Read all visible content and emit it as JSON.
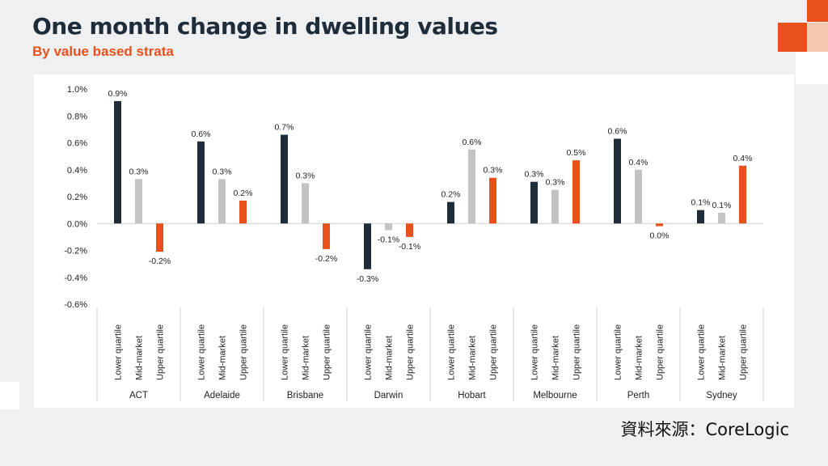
{
  "header": {
    "title": "One month change in dwelling values",
    "subtitle": "By value based strata"
  },
  "footer": {
    "source": "資料來源：CoreLogic"
  },
  "colors": {
    "lower": "#1f2d3a",
    "mid": "#c3c3c3",
    "upper": "#e8501c",
    "accent": "#e8501c",
    "accent_light": "#f7c9b3"
  },
  "chart_data": {
    "type": "bar",
    "title": "One month change in dwelling values",
    "subtitle": "By value based strata",
    "ylim": [
      -0.6,
      1.0
    ],
    "yticks": [
      "1.0%",
      "0.8%",
      "0.6%",
      "0.4%",
      "0.2%",
      "0.0%",
      "-0.2%",
      "-0.4%",
      "-0.6%"
    ],
    "ytick_values": [
      1.0,
      0.8,
      0.6,
      0.4,
      0.2,
      0.0,
      -0.2,
      -0.4,
      -0.6
    ],
    "sub_categories": [
      "Lower quartile",
      "Mid-market",
      "Upper quartile"
    ],
    "groups": [
      {
        "name": "ACT",
        "values": [
          0.91,
          0.33,
          -0.21
        ],
        "labels": [
          "0.9%",
          "0.3%",
          "-0.2%"
        ]
      },
      {
        "name": "Adelaide",
        "values": [
          0.61,
          0.33,
          0.17
        ],
        "labels": [
          "0.6%",
          "0.3%",
          "0.2%"
        ]
      },
      {
        "name": "Brisbane",
        "values": [
          0.66,
          0.3,
          -0.19
        ],
        "labels": [
          "0.7%",
          "0.3%",
          "-0.2%"
        ]
      },
      {
        "name": "Darwin",
        "values": [
          -0.34,
          -0.05,
          -0.1
        ],
        "labels": [
          "-0.3%",
          "-0.1%",
          "-0.1%"
        ]
      },
      {
        "name": "Hobart",
        "values": [
          0.16,
          0.55,
          0.34
        ],
        "labels": [
          "0.2%",
          "0.6%",
          "0.3%"
        ]
      },
      {
        "name": "Melbourne",
        "values": [
          0.31,
          0.25,
          0.47
        ],
        "labels": [
          "0.3%",
          "0.3%",
          "0.5%"
        ]
      },
      {
        "name": "Perth",
        "values": [
          0.63,
          0.4,
          -0.02
        ],
        "labels": [
          "0.6%",
          "0.4%",
          "0.0%"
        ]
      },
      {
        "name": "Sydney",
        "values": [
          0.1,
          0.08,
          0.43
        ],
        "labels": [
          "0.1%",
          "0.1%",
          "0.4%"
        ]
      }
    ],
    "grid": false,
    "legend": "none"
  }
}
